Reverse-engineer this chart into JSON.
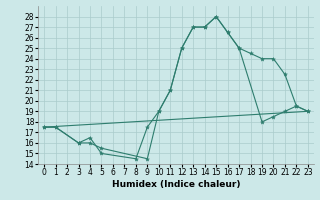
{
  "xlabel": "Humidex (Indice chaleur)",
  "bg_color": "#cce8e8",
  "grid_color": "#aacccc",
  "line_color": "#2e7d6e",
  "xlim": [
    -0.5,
    23.5
  ],
  "ylim": [
    14,
    29
  ],
  "yticks": [
    14,
    15,
    16,
    17,
    18,
    19,
    20,
    21,
    22,
    23,
    24,
    25,
    26,
    27,
    28
  ],
  "xticks": [
    0,
    1,
    2,
    3,
    4,
    5,
    6,
    7,
    8,
    9,
    10,
    11,
    12,
    13,
    14,
    15,
    16,
    17,
    18,
    19,
    20,
    21,
    22,
    23
  ],
  "series1_x": [
    0,
    1,
    3,
    4,
    5,
    8,
    9,
    10,
    11,
    12,
    13,
    14,
    15,
    16,
    17,
    18,
    19,
    20,
    21,
    22,
    23
  ],
  "series1_y": [
    17.5,
    17.5,
    16.0,
    16.5,
    15.0,
    14.5,
    17.5,
    19.0,
    21.0,
    25.0,
    27.0,
    27.0,
    28.0,
    26.5,
    25.0,
    24.5,
    24.0,
    24.0,
    22.5,
    19.5,
    19.0
  ],
  "series2_x": [
    0,
    1,
    3,
    4,
    5,
    9,
    10,
    11,
    12,
    13,
    14,
    15,
    16,
    17,
    19,
    20,
    21,
    22,
    23
  ],
  "series2_y": [
    17.5,
    17.5,
    16.0,
    16.0,
    15.5,
    14.5,
    19.0,
    21.0,
    25.0,
    27.0,
    27.0,
    28.0,
    26.5,
    25.0,
    18.0,
    18.5,
    19.0,
    19.5,
    19.0
  ],
  "series3_x": [
    0,
    23
  ],
  "series3_y": [
    17.5,
    19.0
  ],
  "tick_fontsize": 5.5,
  "label_fontsize": 6.5
}
